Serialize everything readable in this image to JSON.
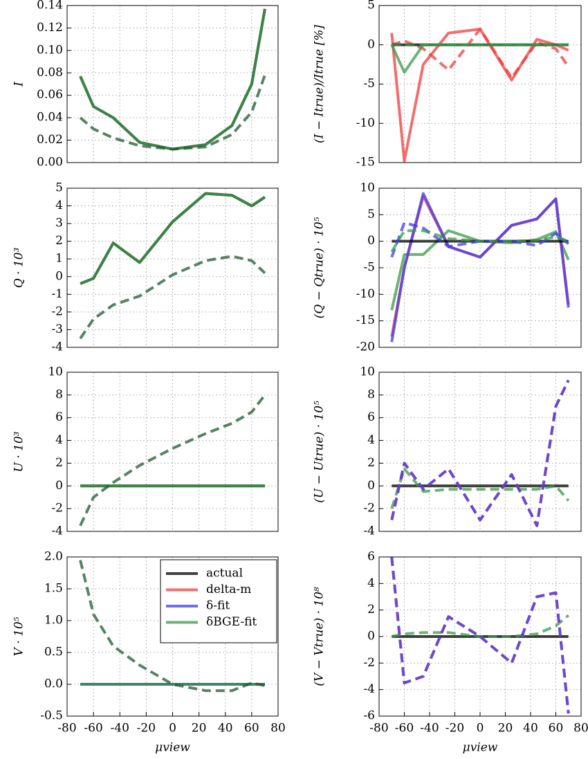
{
  "chart_data": [
    {
      "type": "line",
      "ylabel": "I",
      "x": [
        -70,
        -60,
        -45,
        -25,
        0,
        25,
        45,
        60,
        70
      ],
      "ylim": [
        0,
        0.14
      ],
      "yticks": [
        {
          "value": 0,
          "label": "0.00"
        },
        0.02,
        0.04,
        0.06,
        0.08,
        {
          "value": 0.1,
          "label": "0.10"
        },
        0.12,
        0.14
      ],
      "grid": true,
      "series": [
        {
          "name": "actual",
          "color": "#000000",
          "dashed": false,
          "values": [
            0.077,
            0.05,
            0.04,
            0.018,
            0.012,
            0.016,
            0.033,
            0.07,
            0.137
          ]
        },
        {
          "name": "δBGE-fit",
          "color": "#3a9a48",
          "dashed": false,
          "values": [
            0.077,
            0.05,
            0.04,
            0.018,
            0.012,
            0.016,
            0.033,
            0.07,
            0.137
          ]
        },
        {
          "name": "δBGE-fit",
          "color": "#1e5a30",
          "dashed": true,
          "values": [
            0.04,
            0.03,
            0.022,
            0.015,
            0.012,
            0.014,
            0.025,
            0.045,
            0.078
          ]
        }
      ]
    },
    {
      "type": "line",
      "ylabel": "(I − Itrue)/Itrue [%]",
      "x": [
        -70,
        -60,
        -45,
        -25,
        0,
        25,
        45,
        60,
        70
      ],
      "ylim": [
        -15,
        5
      ],
      "yticks": [
        -15,
        -10,
        -5,
        0,
        5
      ],
      "grid": true,
      "series": [
        {
          "name": "delta-m",
          "color": "#f03c3c",
          "dashed": false,
          "values": [
            1.5,
            -14.8,
            -2.5,
            1.5,
            2,
            -4.5,
            0.7,
            0,
            -0.7
          ]
        },
        {
          "name": "delta-m",
          "color": "#f03c3c",
          "dashed": true,
          "values": [
            0,
            0.5,
            -0.5,
            -3.2,
            2,
            -4.2,
            0.3,
            -0.5,
            -2.8
          ]
        },
        {
          "name": "actual",
          "color": "#000000",
          "dashed": false,
          "values": [
            0,
            0,
            0,
            0,
            0,
            0,
            0,
            0,
            0
          ]
        },
        {
          "name": "δBGE-fit",
          "color": "#3a9a48",
          "dashed": false,
          "values": [
            0,
            -3.5,
            0,
            0,
            0,
            0,
            0,
            0,
            0
          ]
        },
        {
          "name": "δBGE-fit",
          "color": "#3a9a48",
          "dashed": true,
          "values": [
            0,
            0,
            0,
            0,
            0,
            0,
            0,
            0,
            0
          ]
        }
      ]
    },
    {
      "type": "line",
      "ylabel": "Q · 10³",
      "x": [
        -70,
        -60,
        -45,
        -25,
        0,
        25,
        45,
        60,
        70
      ],
      "ylim": [
        -4,
        5
      ],
      "yticks": [
        -4,
        -3,
        -2,
        -1,
        0,
        1,
        2,
        3,
        4,
        5
      ],
      "grid": true,
      "series": [
        {
          "name": "actual",
          "color": "#000000",
          "dashed": false,
          "values": [
            -0.4,
            -0.1,
            1.9,
            0.8,
            3.1,
            4.7,
            4.6,
            4.0,
            4.5
          ]
        },
        {
          "name": "δBGE-fit",
          "color": "#3a9a48",
          "dashed": false,
          "values": [
            -0.4,
            -0.1,
            1.9,
            0.8,
            3.1,
            4.7,
            4.6,
            4.0,
            4.5
          ]
        },
        {
          "name": "δBGE-fit",
          "color": "#1e5a30",
          "dashed": true,
          "values": [
            -3.5,
            -2.4,
            -1.6,
            -1.1,
            0.1,
            0.9,
            1.15,
            0.9,
            0.2
          ]
        }
      ]
    },
    {
      "type": "line",
      "ylabel": "(Q − Qtrue) · 10⁵",
      "x": [
        -70,
        -60,
        -45,
        -25,
        0,
        25,
        45,
        60,
        70
      ],
      "ylim": [
        -20,
        10
      ],
      "yticks": [
        -20,
        -15,
        -10,
        -5,
        0,
        5,
        10
      ],
      "grid": true,
      "series": [
        {
          "name": "δBGE-fit",
          "color": "#3a9a48",
          "dashed": false,
          "values": [
            -13,
            -2.5,
            -2.5,
            2,
            0,
            -0.3,
            0.3,
            1.8,
            -3.5
          ]
        },
        {
          "name": "delta-m",
          "color": "#f03c3c",
          "dashed": false,
          "values": [
            -18,
            -5,
            8.5,
            -1,
            -3,
            3,
            4.2,
            8,
            -12
          ]
        },
        {
          "name": "δ-fit",
          "color": "#3c3cf0",
          "dashed": false,
          "values": [
            -19,
            -5,
            9,
            -1,
            -3,
            3,
            4.2,
            8,
            -12.5
          ]
        },
        {
          "name": "actual",
          "color": "#000000",
          "dashed": false,
          "values": [
            0,
            0,
            0,
            0,
            0,
            0,
            0,
            0,
            0
          ]
        },
        {
          "name": "δ-fit",
          "color": "#3c3cf0",
          "dashed": true,
          "values": [
            -3,
            3.5,
            2.5,
            -1,
            0,
            0,
            -0.8,
            1.5,
            -0.5
          ]
        },
        {
          "name": "δBGE-fit",
          "color": "#3a9a48",
          "dashed": true,
          "values": [
            -2,
            2,
            2,
            0.5,
            0,
            0,
            0.2,
            0.8,
            0
          ]
        }
      ]
    },
    {
      "type": "line",
      "ylabel": "U · 10³",
      "x": [
        -70,
        -60,
        -45,
        -25,
        0,
        25,
        45,
        60,
        70
      ],
      "ylim": [
        -4,
        10
      ],
      "yticks": [
        -4,
        -2,
        0,
        2,
        4,
        6,
        8,
        10
      ],
      "grid": true,
      "series": [
        {
          "name": "actual",
          "color": "#000000",
          "dashed": false,
          "values": [
            0,
            0,
            0,
            0,
            0,
            0,
            0,
            0,
            0
          ]
        },
        {
          "name": "δBGE-fit",
          "color": "#3a9a48",
          "dashed": false,
          "values": [
            0,
            0,
            0,
            0,
            0,
            0,
            0,
            0,
            0
          ]
        },
        {
          "name": "δBGE-fit",
          "color": "#1e5a30",
          "dashed": true,
          "values": [
            -3.5,
            -1,
            0.3,
            1.8,
            3.3,
            4.6,
            5.5,
            6.5,
            8
          ]
        }
      ]
    },
    {
      "type": "line",
      "ylabel": "(U − Utrue) · 10⁵",
      "x": [
        -70,
        -60,
        -45,
        -25,
        0,
        25,
        45,
        60,
        70
      ],
      "ylim": [
        -4,
        10
      ],
      "yticks": [
        -4,
        -2,
        0,
        2,
        4,
        6,
        8,
        10
      ],
      "grid": true,
      "series": [
        {
          "name": "actual",
          "color": "#000000",
          "dashed": false,
          "values": [
            0,
            0,
            0,
            0,
            0,
            0,
            0,
            0,
            0
          ]
        },
        {
          "name": "δBGE-fit",
          "color": "#3a9a48",
          "dashed": true,
          "values": [
            -2,
            1.5,
            -0.5,
            -0.3,
            -0.3,
            -0.3,
            -0.3,
            0,
            -1.3
          ]
        },
        {
          "name": "delta-m",
          "color": "#f03c3c",
          "dashed": true,
          "values": [
            -3,
            2,
            -0.3,
            1.5,
            -3,
            1,
            -3.5,
            7,
            9.3
          ]
        },
        {
          "name": "δ-fit",
          "color": "#3c3cf0",
          "dashed": true,
          "values": [
            -3,
            2,
            -0.3,
            1.5,
            -3,
            1,
            -3.5,
            7,
            9.3
          ]
        }
      ]
    },
    {
      "type": "line",
      "ylabel": "V · 10⁵",
      "xlabel": "μview",
      "x": [
        -70,
        -60,
        -45,
        -25,
        0,
        25,
        45,
        60,
        70
      ],
      "xlim": [
        -80,
        80
      ],
      "xticks": [
        -80,
        -60,
        -40,
        -20,
        0,
        20,
        40,
        60,
        80
      ],
      "ylim": [
        -0.5,
        2.0
      ],
      "yticks": [
        -0.5,
        {
          "value": 0,
          "label": "0.0"
        },
        0.5,
        {
          "value": 1,
          "label": "1.0"
        },
        1.5,
        {
          "value": 2,
          "label": "2.0"
        }
      ],
      "grid": true,
      "legend": "upper right",
      "series": [
        {
          "name": "actual",
          "color": "#000000",
          "dashed": false,
          "values": [
            0,
            0,
            0,
            0,
            0,
            0,
            0,
            0,
            0
          ]
        },
        {
          "name": "delta-m",
          "color": "#f03c3c",
          "dashed": false,
          "values": [
            0,
            0,
            0,
            0,
            0,
            0,
            0,
            0,
            0
          ]
        },
        {
          "name": "δ-fit",
          "color": "#3c3cf0",
          "dashed": false,
          "values": [
            0,
            0,
            0,
            0,
            0,
            0,
            0,
            0,
            0
          ]
        },
        {
          "name": "δBGE-fit",
          "color": "#3a9a48",
          "dashed": false,
          "values": [
            0,
            0,
            0,
            0,
            0,
            0,
            0,
            0,
            0
          ]
        },
        {
          "name": "δBGE-fit",
          "color": "#1e5a30",
          "dashed": true,
          "values": [
            1.95,
            1.1,
            0.6,
            0.3,
            0,
            -0.1,
            -0.1,
            0.02,
            -0.02
          ]
        }
      ]
    },
    {
      "type": "line",
      "ylabel": "(V − Vtrue) · 10⁸",
      "xlabel": "μview",
      "x": [
        -70,
        -60,
        -45,
        -25,
        0,
        25,
        45,
        60,
        70
      ],
      "xlim": [
        -80,
        80
      ],
      "xticks": [
        -80,
        -60,
        -40,
        -20,
        0,
        20,
        40,
        60,
        80
      ],
      "ylim": [
        -6,
        6
      ],
      "yticks": [
        -6,
        -4,
        -2,
        0,
        2,
        4,
        6
      ],
      "grid": true,
      "series": [
        {
          "name": "actual",
          "color": "#000000",
          "dashed": false,
          "values": [
            0,
            0,
            0,
            0,
            0,
            0,
            0,
            0,
            0
          ]
        },
        {
          "name": "δBGE-fit",
          "color": "#3a9a48",
          "dashed": true,
          "values": [
            0,
            0.2,
            0.3,
            0.3,
            0,
            0,
            0.2,
            0.8,
            1.6
          ]
        },
        {
          "name": "delta-m",
          "color": "#f03c3c",
          "dashed": true,
          "values": [
            6,
            -3.5,
            -3,
            1.5,
            0,
            -2,
            3,
            3.3,
            -5.8
          ]
        },
        {
          "name": "δ-fit",
          "color": "#3c3cf0",
          "dashed": true,
          "values": [
            6,
            -3.5,
            -3,
            1.5,
            0,
            -2,
            3,
            3.3,
            -5.8
          ]
        }
      ]
    }
  ]
}
